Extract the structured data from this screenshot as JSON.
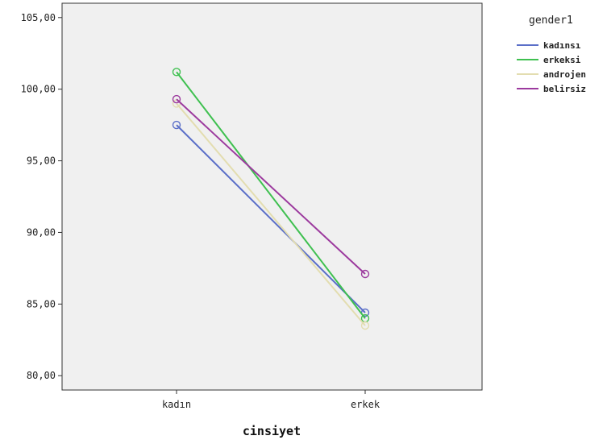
{
  "chart_data": {
    "type": "line",
    "xlabel": "cinsiyet",
    "ylabel": "",
    "categories": [
      "kadın",
      "erkek"
    ],
    "ylim": [
      79,
      106
    ],
    "yticks": [
      80,
      85,
      90,
      95,
      100,
      105
    ],
    "ytick_labels": [
      "80,00",
      "85,00",
      "90,00",
      "95,00",
      "100,00",
      "105,00"
    ],
    "grid": false,
    "legend_title": "gender1",
    "legend_position": "right",
    "series": [
      {
        "name": "kadınsı",
        "color": "#5b6fc8",
        "values": [
          97.5,
          84.4
        ]
      },
      {
        "name": "erkeksi",
        "color": "#3fc050",
        "values": [
          101.2,
          84.0
        ]
      },
      {
        "name": "androjen",
        "color": "#e3ddb0",
        "values": [
          99.0,
          83.5
        ]
      },
      {
        "name": "belirsiz",
        "color": "#9c3a9e",
        "values": [
          99.3,
          87.1
        ]
      }
    ]
  }
}
